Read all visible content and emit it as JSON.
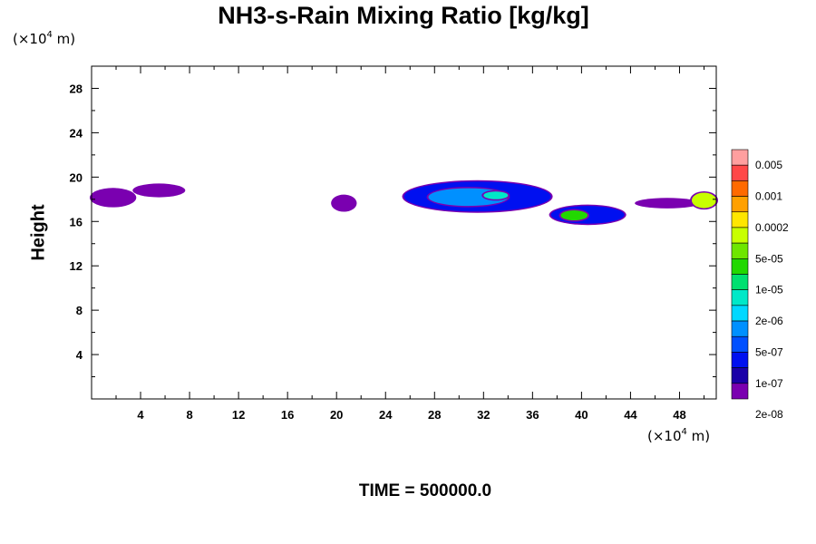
{
  "title": "NH3-s-Rain Mixing Ratio [kg/kg]",
  "y_unit_prefix": "(×10",
  "y_unit_exp": "4",
  "y_unit_suffix": " m)",
  "x_unit_prefix": "(×10",
  "x_unit_exp": "4",
  "x_unit_suffix": " m)",
  "time_text": "TIME = 500000.0",
  "chart_data": {
    "type": "heatmap",
    "title": "NH3-s-Rain Mixing Ratio [kg/kg]",
    "xlabel": "",
    "ylabel": "Height",
    "x_unit": "(×10^4 m)",
    "y_unit": "(×10^4 m)",
    "xlim": [
      0,
      51
    ],
    "ylim": [
      0,
      30
    ],
    "x_ticks": [
      4,
      8,
      12,
      16,
      20,
      24,
      28,
      32,
      36,
      40,
      44,
      48
    ],
    "y_ticks": [
      4,
      8,
      12,
      16,
      20,
      24,
      28
    ],
    "colorbar": {
      "labels": [
        "0.005",
        "0.001",
        "0.0002",
        "5e-05",
        "1e-05",
        "2e-06",
        "5e-07",
        "1e-07",
        "2e-08"
      ],
      "colors": [
        "#ff9f9f",
        "#ff4848",
        "#ff6a00",
        "#ffa000",
        "#ffe600",
        "#c8ff00",
        "#6ee600",
        "#22d800",
        "#00e070",
        "#00e8c8",
        "#00d8ff",
        "#0090ff",
        "#0050ff",
        "#0010f0",
        "#1a00a8",
        "#7a00b0"
      ]
    },
    "regions": [
      {
        "x": [
          0.0,
          3.5
        ],
        "y": [
          17.4,
          18.9
        ],
        "level": "1e-07"
      },
      {
        "x": [
          3.5,
          7.5
        ],
        "y": [
          18.3,
          19.3
        ],
        "level": "1e-07"
      },
      {
        "x": [
          19.7,
          21.5
        ],
        "y": [
          17.0,
          18.3
        ],
        "level": "1e-07"
      },
      {
        "x": [
          25.5,
          37.5
        ],
        "y": [
          16.9,
          19.6
        ],
        "level": "5e-07"
      },
      {
        "x": [
          27.5,
          34.0
        ],
        "y": [
          17.4,
          19.0
        ],
        "level": "2e-06"
      },
      {
        "x": [
          32.0,
          34.0
        ],
        "y": [
          18.0,
          18.7
        ],
        "level": "1e-05"
      },
      {
        "x": [
          37.5,
          43.5
        ],
        "y": [
          15.8,
          17.4
        ],
        "level": "5e-07"
      },
      {
        "x": [
          38.3,
          40.5
        ],
        "y": [
          16.1,
          17.0
        ],
        "level": "5e-05"
      },
      {
        "x": [
          44.5,
          49.5
        ],
        "y": [
          17.3,
          18.0
        ],
        "level": "2e-08"
      },
      {
        "x": [
          49.0,
          51.0
        ],
        "y": [
          17.2,
          18.6
        ],
        "level": "0.0002"
      }
    ]
  }
}
